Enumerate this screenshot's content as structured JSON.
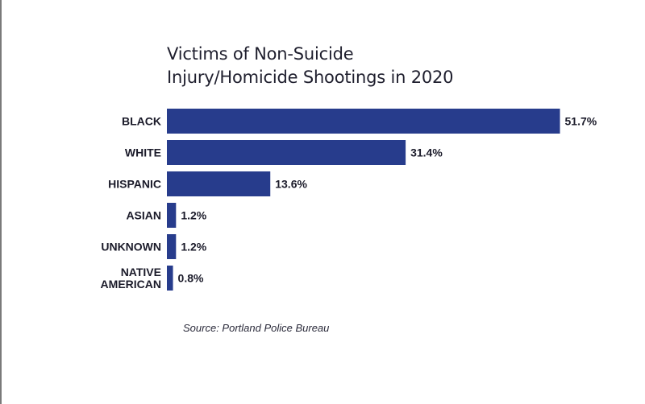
{
  "chart_data": {
    "type": "bar",
    "orientation": "horizontal",
    "title_lines": [
      "Victims of Non-Suicide",
      "Injury/Homicide Shootings in 2020"
    ],
    "categories": [
      {
        "lines": [
          "BLACK"
        ]
      },
      {
        "lines": [
          "WHITE"
        ]
      },
      {
        "lines": [
          "HISPANIC"
        ]
      },
      {
        "lines": [
          "ASIAN"
        ]
      },
      {
        "lines": [
          "UNKNOWN"
        ]
      },
      {
        "lines": [
          "NATIVE",
          "AMERICAN"
        ]
      }
    ],
    "values": [
      51.7,
      31.4,
      13.6,
      1.2,
      1.2,
      0.8
    ],
    "value_labels": [
      "51.7%",
      "31.4%",
      "13.6%",
      "1.2%",
      "1.2%",
      "0.8%"
    ],
    "unit": "%",
    "bar_color": "#273c8c",
    "grid": false,
    "legend": "none"
  },
  "source": "Source: Portland Police Bureau"
}
